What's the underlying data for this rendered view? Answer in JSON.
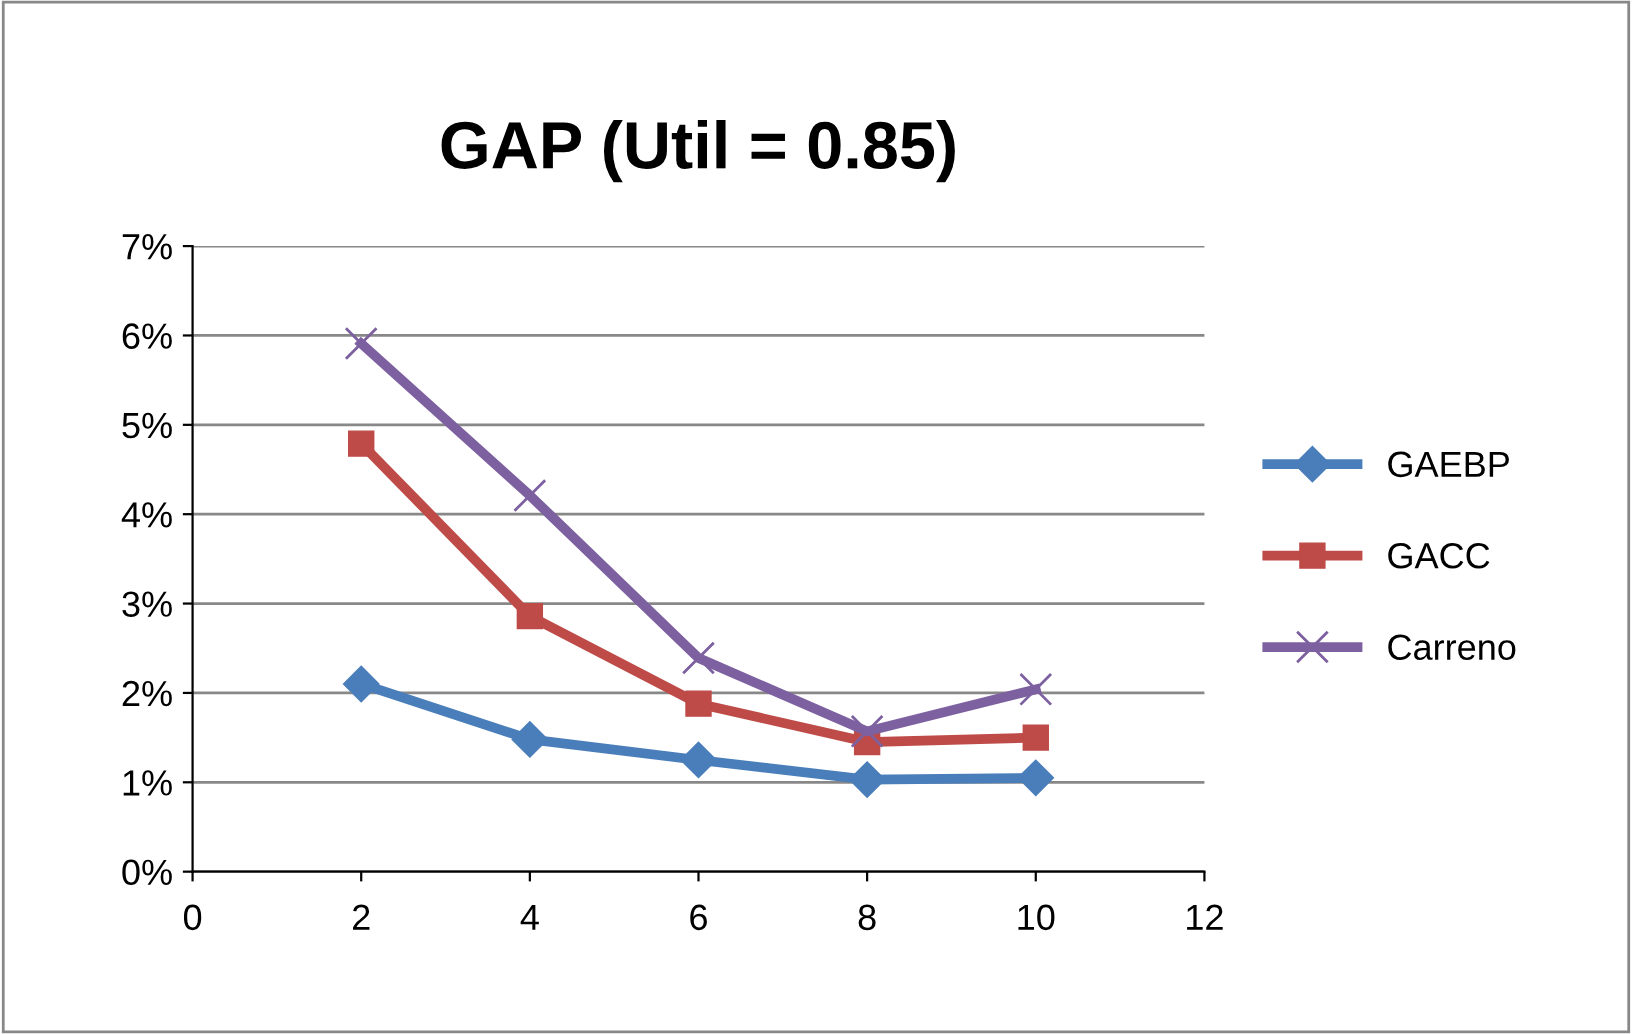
{
  "chart_data": {
    "type": "line",
    "title": "GAP (Util = 0.85)",
    "x": [
      2,
      4,
      6,
      8,
      10
    ],
    "series": [
      {
        "name": "GAEBP",
        "color": "#4a7ebb",
        "marker": "diamond",
        "values": [
          2.1,
          1.48,
          1.25,
          1.03,
          1.05
        ]
      },
      {
        "name": "GACC",
        "color": "#be4b48",
        "marker": "square",
        "values": [
          4.79,
          2.86,
          1.88,
          1.45,
          1.5
        ]
      },
      {
        "name": "Carreno",
        "color": "#7d60a0",
        "marker": "cross",
        "values": [
          5.91,
          4.21,
          2.39,
          1.57,
          2.04
        ]
      }
    ],
    "xlim": [
      0,
      12
    ],
    "xticks": [
      0,
      2,
      4,
      6,
      8,
      10,
      12
    ],
    "ylim": [
      0,
      7
    ],
    "yticks": [
      {
        "value": 0,
        "label": "0%"
      },
      {
        "value": 1,
        "label": "1%"
      },
      {
        "value": 2,
        "label": "2%"
      },
      {
        "value": 3,
        "label": "3%"
      },
      {
        "value": 4,
        "label": "4%"
      },
      {
        "value": 5,
        "label": "5%"
      },
      {
        "value": 6,
        "label": "6%"
      },
      {
        "value": 7,
        "label": "7%"
      }
    ],
    "grid": "y",
    "legend": "right",
    "line_style": "solid"
  }
}
